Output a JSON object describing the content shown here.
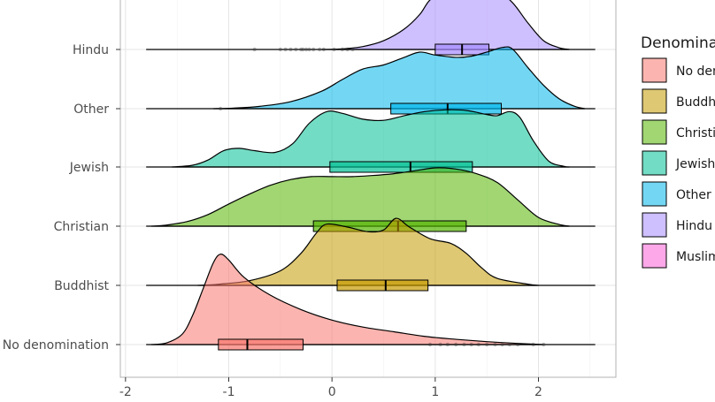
{
  "chart_data": {
    "type": "raincloud",
    "title": "",
    "xlabel": "",
    "ylabel": "",
    "xlim": [
      -2.05,
      2.75
    ],
    "x_ticks": [
      -2,
      -1,
      0,
      1,
      2
    ],
    "x_tick_labels": [
      "-2",
      "-1",
      "0",
      "1",
      "2"
    ],
    "categories": [
      "No denomination",
      "Buddhist",
      "Christian",
      "Jewish",
      "Other",
      "Hindu"
    ],
    "grid": true,
    "legend": {
      "title": "Denomina",
      "position": "right",
      "entries": [
        {
          "label": "No den",
          "color": "#F8766D"
        },
        {
          "label": "Buddhi",
          "color": "#C49A00"
        },
        {
          "label": "Christi",
          "color": "#53B400"
        },
        {
          "label": "Jewish",
          "color": "#00C094"
        },
        {
          "label": "Other",
          "color": "#00B6EB"
        },
        {
          "label": "Hindu",
          "color": "#A58AFF"
        },
        {
          "label": "Muslim",
          "color": "#FB61D7"
        }
      ]
    },
    "series": [
      {
        "category": "No denomination",
        "color": "#F8766D",
        "density": [
          [
            -1.75,
            0
          ],
          [
            -1.6,
            0.03
          ],
          [
            -1.45,
            0.18
          ],
          [
            -1.35,
            0.5
          ],
          [
            -1.25,
            0.95
          ],
          [
            -1.15,
            1.4
          ],
          [
            -1.08,
            1.55
          ],
          [
            -1.0,
            1.45
          ],
          [
            -0.85,
            1.15
          ],
          [
            -0.6,
            0.85
          ],
          [
            -0.3,
            0.6
          ],
          [
            0.0,
            0.42
          ],
          [
            0.3,
            0.3
          ],
          [
            0.6,
            0.22
          ],
          [
            0.9,
            0.14
          ],
          [
            1.2,
            0.09
          ],
          [
            1.5,
            0.05
          ],
          [
            1.8,
            0.02
          ],
          [
            2.05,
            0
          ]
        ],
        "box": {
          "min": -1.28,
          "q1": -1.1,
          "median": -0.82,
          "q3": -0.28,
          "max": 0.9
        },
        "outliers": [
          0.95,
          1.05,
          1.12,
          1.2,
          1.28,
          1.35,
          1.42,
          1.5,
          1.58,
          1.65,
          1.72,
          1.8,
          1.95,
          2.05
        ]
      },
      {
        "category": "Buddhist",
        "color": "#C49A00",
        "density": [
          [
            -1.3,
            0
          ],
          [
            -1.1,
            0.02
          ],
          [
            -0.8,
            0.08
          ],
          [
            -0.5,
            0.25
          ],
          [
            -0.3,
            0.55
          ],
          [
            -0.15,
            0.9
          ],
          [
            -0.05,
            1.05
          ],
          [
            0.15,
            1.0
          ],
          [
            0.35,
            0.92
          ],
          [
            0.5,
            0.95
          ],
          [
            0.62,
            1.15
          ],
          [
            0.75,
            1.0
          ],
          [
            0.95,
            0.8
          ],
          [
            1.15,
            0.72
          ],
          [
            1.3,
            0.55
          ],
          [
            1.45,
            0.3
          ],
          [
            1.6,
            0.12
          ],
          [
            1.9,
            0.02
          ],
          [
            2.0,
            0
          ]
        ],
        "box": {
          "min": -0.95,
          "q1": 0.05,
          "median": 0.52,
          "q3": 0.93,
          "max": 1.85
        },
        "outliers": []
      },
      {
        "category": "Christian",
        "color": "#53B400",
        "density": [
          [
            -1.75,
            0
          ],
          [
            -1.6,
            0.02
          ],
          [
            -1.4,
            0.08
          ],
          [
            -1.2,
            0.2
          ],
          [
            -1.0,
            0.38
          ],
          [
            -0.8,
            0.55
          ],
          [
            -0.6,
            0.7
          ],
          [
            -0.4,
            0.8
          ],
          [
            -0.2,
            0.85
          ],
          [
            0.0,
            0.85
          ],
          [
            0.2,
            0.85
          ],
          [
            0.4,
            0.87
          ],
          [
            0.6,
            0.9
          ],
          [
            0.8,
            0.95
          ],
          [
            1.0,
            1.0
          ],
          [
            1.2,
            0.98
          ],
          [
            1.4,
            0.9
          ],
          [
            1.6,
            0.75
          ],
          [
            1.8,
            0.45
          ],
          [
            2.0,
            0.15
          ],
          [
            2.2,
            0.03
          ],
          [
            2.3,
            0
          ]
        ],
        "box": {
          "min": -1.08,
          "q1": -0.18,
          "median": 0.64,
          "q3": 1.3,
          "max": 2.02
        },
        "outliers": []
      },
      {
        "category": "Jewish",
        "color": "#00C094",
        "density": [
          [
            -1.55,
            0
          ],
          [
            -1.35,
            0.03
          ],
          [
            -1.2,
            0.12
          ],
          [
            -1.05,
            0.28
          ],
          [
            -0.9,
            0.32
          ],
          [
            -0.75,
            0.28
          ],
          [
            -0.55,
            0.25
          ],
          [
            -0.38,
            0.4
          ],
          [
            -0.22,
            0.75
          ],
          [
            -0.05,
            0.95
          ],
          [
            0.1,
            0.92
          ],
          [
            0.3,
            0.82
          ],
          [
            0.5,
            0.8
          ],
          [
            0.7,
            0.88
          ],
          [
            0.9,
            0.95
          ],
          [
            1.1,
            0.98
          ],
          [
            1.3,
            0.97
          ],
          [
            1.5,
            0.9
          ],
          [
            1.6,
            0.88
          ],
          [
            1.72,
            0.95
          ],
          [
            1.82,
            0.85
          ],
          [
            1.95,
            0.45
          ],
          [
            2.1,
            0.1
          ],
          [
            2.25,
            0.01
          ],
          [
            2.3,
            0
          ]
        ],
        "box": {
          "min": -1.1,
          "q1": -0.02,
          "median": 0.76,
          "q3": 1.36,
          "max": 2.02
        },
        "outliers": []
      },
      {
        "category": "Other",
        "color": "#00B6EB",
        "density": [
          [
            -1.15,
            0
          ],
          [
            -0.95,
            0.01
          ],
          [
            -0.7,
            0.04
          ],
          [
            -0.4,
            0.12
          ],
          [
            -0.1,
            0.3
          ],
          [
            0.1,
            0.5
          ],
          [
            0.3,
            0.68
          ],
          [
            0.5,
            0.75
          ],
          [
            0.7,
            0.88
          ],
          [
            0.85,
            0.97
          ],
          [
            1.0,
            0.92
          ],
          [
            1.2,
            0.88
          ],
          [
            1.35,
            0.9
          ],
          [
            1.5,
            0.97
          ],
          [
            1.65,
            1.05
          ],
          [
            1.75,
            1.02
          ],
          [
            1.9,
            0.7
          ],
          [
            2.05,
            0.4
          ],
          [
            2.2,
            0.17
          ],
          [
            2.35,
            0.04
          ],
          [
            2.45,
            0
          ]
        ],
        "box": {
          "min": -1.05,
          "q1": 0.57,
          "median": 1.12,
          "q3": 1.64,
          "max": 2.0
        },
        "outliers": [
          -1.08
        ]
      },
      {
        "category": "Hindu",
        "color": "#A58AFF",
        "density": [
          [
            -0.1,
            0
          ],
          [
            0.1,
            0.01
          ],
          [
            0.3,
            0.05
          ],
          [
            0.5,
            0.15
          ],
          [
            0.7,
            0.35
          ],
          [
            0.85,
            0.6
          ],
          [
            0.95,
            0.85
          ],
          [
            1.1,
            1.0
          ],
          [
            1.25,
            1.05
          ],
          [
            1.4,
            1.05
          ],
          [
            1.6,
            1.0
          ],
          [
            1.75,
            0.8
          ],
          [
            1.9,
            0.45
          ],
          [
            2.05,
            0.15
          ],
          [
            2.2,
            0.03
          ],
          [
            2.3,
            0
          ]
        ],
        "box": {
          "min": 0.48,
          "q1": 1.0,
          "median": 1.26,
          "q3": 1.52,
          "max": 2.0
        },
        "outliers": [
          -0.75,
          -0.5,
          -0.45,
          -0.4,
          -0.35,
          -0.3,
          -0.28,
          -0.25,
          -0.22,
          -0.18,
          -0.12,
          -0.08,
          0.02,
          0.1,
          0.15,
          0.2
        ]
      }
    ]
  }
}
